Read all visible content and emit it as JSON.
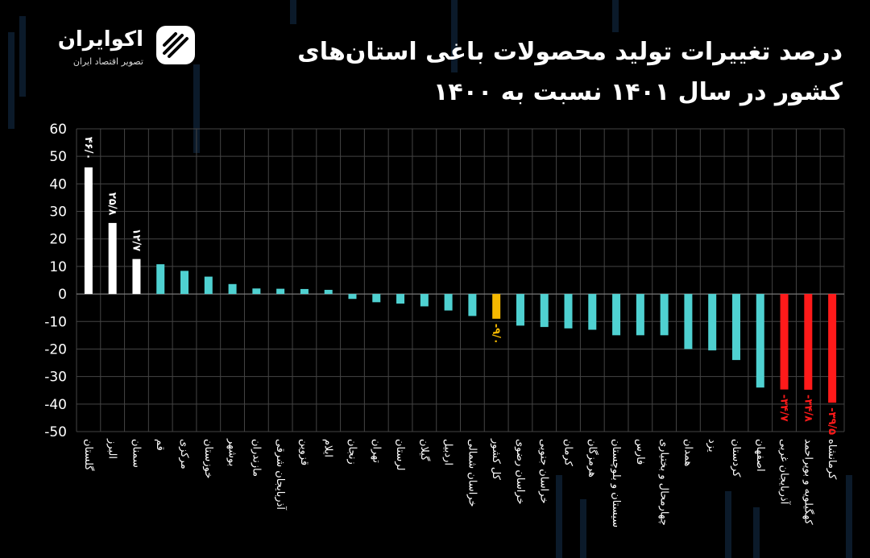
{
  "title": "درصد تغییرات تولید محصولات باغی استان‌های کشور در سال ۱۴۰۱ نسبت به ۱۴۰۰",
  "logo": {
    "name": "اکوایران",
    "tagline": "تصویر اقتصاد ایران",
    "icon": "ekoiran-logo-icon"
  },
  "colors": {
    "background": "#000000",
    "bar_default": "#4fd1d1",
    "bar_top": "#ffffff",
    "bar_bottom": "#ff1a1a",
    "bar_total": "#f5b800",
    "grid": "#444444",
    "text": "#ffffff"
  },
  "chart_data": {
    "type": "bar",
    "title": "درصد تغییرات تولید محصولات باغی استان‌های کشور در سال ۱۴۰۱ نسبت به ۱۴۰۰",
    "xlabel": "",
    "ylabel": "",
    "ylim": [
      -50,
      60
    ],
    "yticks": [
      "60",
      "50",
      "40",
      "30",
      "20",
      "10",
      "0",
      "-10",
      "-20",
      "-30",
      "-40",
      "-50"
    ],
    "ytick_values": [
      60,
      50,
      40,
      30,
      20,
      10,
      0,
      -10,
      -20,
      -30,
      -40,
      -50
    ],
    "grid": true,
    "categories": [
      "گلستان",
      "البرز",
      "سمنان",
      "قم",
      "مرکزی",
      "خوزستان",
      "بوشهر",
      "مازندران",
      "آذربایجان شرقی",
      "قزوین",
      "ایلام",
      "زنجان",
      "تهران",
      "لرستان",
      "گیلان",
      "اردبیل",
      "خراسان شمالی",
      "کل کشور",
      "خراسان رضوی",
      "خراسان جنوبی",
      "کرمان",
      "هرمزگان",
      "سیستان و بلوچستان",
      "فارس",
      "چهارمحال و بختیاری",
      "همدان",
      "یزد",
      "کردستان",
      "اصفهان",
      "آذربایجان غربی",
      "کهگیلویه و بویراحمد",
      "کرمانشاه"
    ],
    "values": [
      46.0,
      25.8,
      12.7,
      10.8,
      8.4,
      6.3,
      3.6,
      2.0,
      1.9,
      1.8,
      1.5,
      -1.8,
      -3.0,
      -3.5,
      -4.5,
      -6.0,
      -8.0,
      -9.0,
      -11.5,
      -12.0,
      -12.5,
      -13.0,
      -15.0,
      -15.0,
      -15.0,
      -20.0,
      -20.5,
      -24.0,
      -34.0,
      -34.7,
      -34.8,
      -39.5
    ],
    "data_labels": {
      "0": "۴۶/۰",
      "1": "۲۵/۸",
      "2": "۱۲/۷",
      "17": "-۹/۰",
      "29": "-۳۴/۷",
      "30": "-۳۴/۸",
      "31": "-۳۹/۵"
    },
    "highlight": {
      "top": [
        0,
        1,
        2
      ],
      "total": [
        17
      ],
      "bottom": [
        29,
        30,
        31
      ]
    }
  }
}
